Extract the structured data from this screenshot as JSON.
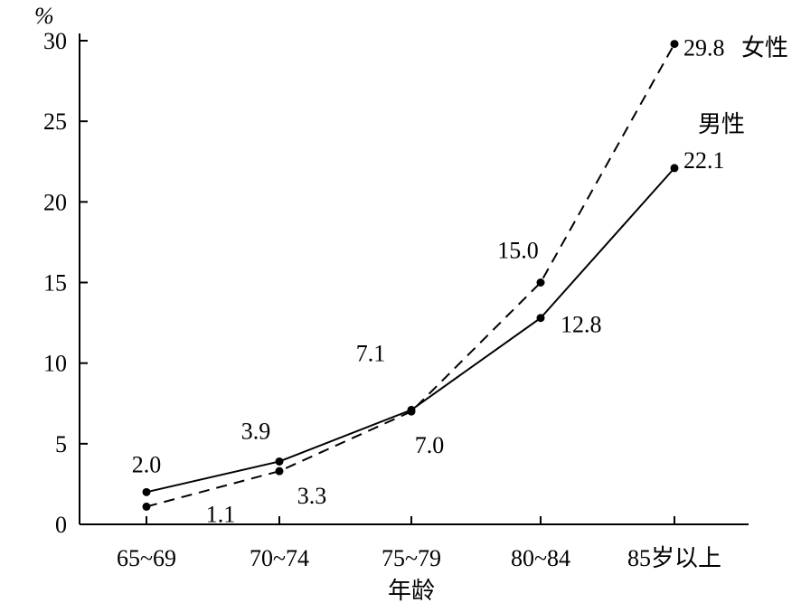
{
  "chart_data": {
    "type": "line",
    "categories": [
      "65~69",
      "70~74",
      "75~79",
      "80~84",
      "85岁以上"
    ],
    "ylim": [
      0,
      30
    ],
    "yticks": [
      0,
      5,
      10,
      15,
      20,
      25,
      30
    ],
    "ylabel": "%",
    "xlabel": "年龄",
    "grid": false,
    "series": [
      {
        "name": "男性",
        "style": "solid",
        "color": "#000000",
        "values": [
          2.0,
          3.9,
          7.1,
          12.8,
          22.1
        ],
        "labels": [
          "2.0",
          "3.9",
          "7.1",
          "12.8",
          "22.1"
        ]
      },
      {
        "name": "女性",
        "style": "dashed",
        "color": "#000000",
        "values": [
          1.1,
          3.3,
          7.0,
          15.0,
          29.8
        ],
        "labels": [
          "1.1",
          "3.3",
          "7.0",
          "15.0",
          "29.8"
        ]
      }
    ]
  }
}
